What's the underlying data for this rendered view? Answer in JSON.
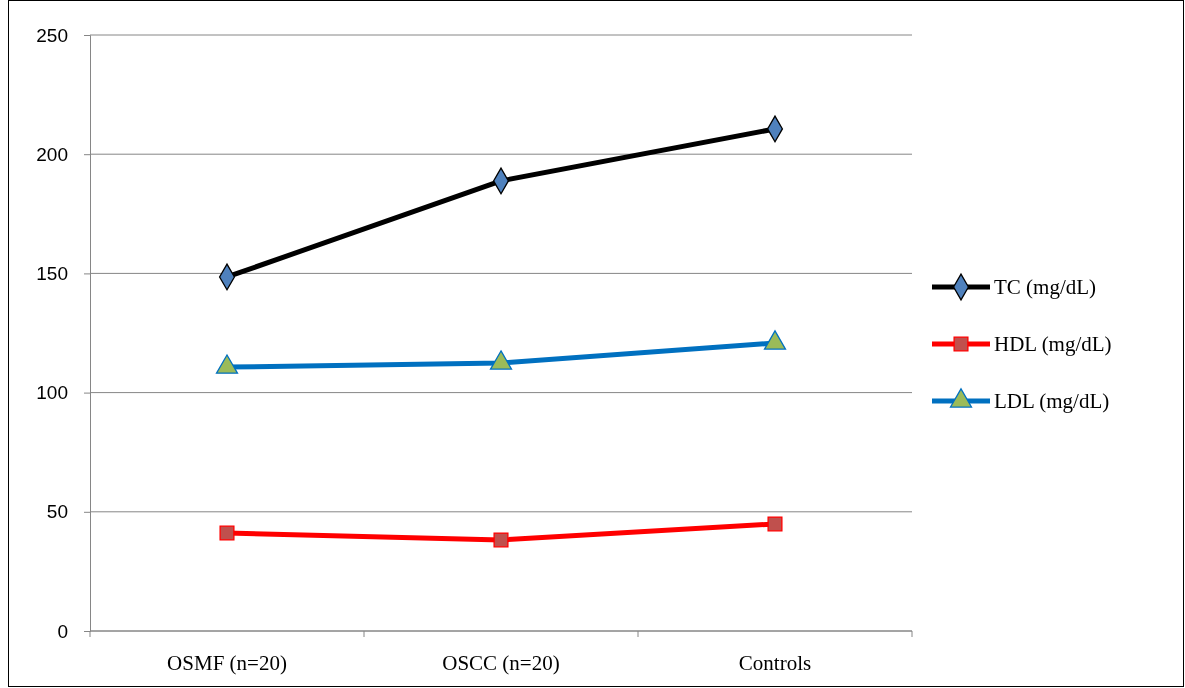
{
  "chart_data": {
    "type": "line",
    "categories": [
      "OSMF (n=20)",
      "OSCC (n=20)",
      "Controls"
    ],
    "series": [
      {
        "name": "TC (mg/dL)",
        "color": "#000000",
        "marker": "diamond",
        "values": [
          148.5,
          188.8,
          210.6
        ]
      },
      {
        "name": "HDL (mg/dL)",
        "color": "#ff0000",
        "marker": "square",
        "values": [
          41.1,
          38.2,
          44.9
        ]
      },
      {
        "name": "LDL (mg/dL)",
        "color": "#0070c0",
        "marker": "triangle",
        "values": [
          110.7,
          112.4,
          120.8
        ]
      }
    ],
    "ylim": [
      0,
      250
    ],
    "yticks": [
      0,
      50,
      100,
      150,
      200,
      250
    ],
    "grid": "y",
    "legend": "right",
    "line_style": "solid"
  }
}
